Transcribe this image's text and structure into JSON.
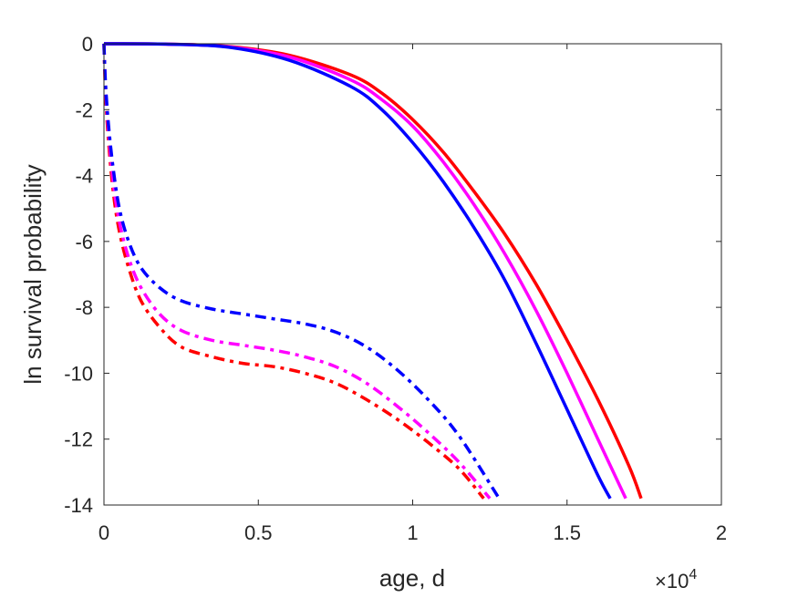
{
  "chart_data": {
    "type": "line",
    "title": "",
    "xlabel": "age, d",
    "ylabel": "ln survival probability",
    "x_exponent_label": "×10",
    "x_exponent_power": "4",
    "xlim": [
      0,
      20000
    ],
    "ylim": [
      -14,
      0
    ],
    "x_ticks": [
      0,
      5000,
      10000,
      15000,
      20000
    ],
    "x_tick_labels": [
      "0",
      "0.5",
      "1",
      "1.5",
      "2"
    ],
    "y_ticks": [
      0,
      -2,
      -4,
      -6,
      -8,
      -10,
      -12,
      -14
    ],
    "y_tick_labels": [
      "0",
      "-2",
      "-4",
      "-6",
      "-8",
      "-10",
      "-12",
      "-14"
    ],
    "grid": false,
    "series": [
      {
        "color": "#ff0000",
        "style": "solid",
        "points": [
          [
            0,
            0
          ],
          [
            2000,
            -0.01
          ],
          [
            4000,
            -0.08
          ],
          [
            6000,
            -0.35
          ],
          [
            8000,
            -0.95
          ],
          [
            9000,
            -1.5
          ],
          [
            10000,
            -2.3
          ],
          [
            11000,
            -3.3
          ],
          [
            12000,
            -4.5
          ],
          [
            13000,
            -5.8
          ],
          [
            14000,
            -7.3
          ],
          [
            15000,
            -9.0
          ],
          [
            16000,
            -10.8
          ],
          [
            17000,
            -12.8
          ],
          [
            17400,
            -13.8
          ]
        ]
      },
      {
        "color": "#ff00ff",
        "style": "solid",
        "points": [
          [
            0,
            0
          ],
          [
            2000,
            -0.01
          ],
          [
            4000,
            -0.09
          ],
          [
            6000,
            -0.4
          ],
          [
            8000,
            -1.1
          ],
          [
            9000,
            -1.7
          ],
          [
            10000,
            -2.5
          ],
          [
            11000,
            -3.6
          ],
          [
            12000,
            -4.9
          ],
          [
            13000,
            -6.4
          ],
          [
            14000,
            -8.1
          ],
          [
            15000,
            -10.0
          ],
          [
            16000,
            -12.0
          ],
          [
            16900,
            -13.8
          ]
        ]
      },
      {
        "color": "#0000ff",
        "style": "solid",
        "points": [
          [
            0,
            0
          ],
          [
            2000,
            -0.01
          ],
          [
            4000,
            -0.1
          ],
          [
            6000,
            -0.5
          ],
          [
            8000,
            -1.3
          ],
          [
            9000,
            -2.0
          ],
          [
            10000,
            -3.0
          ],
          [
            11000,
            -4.2
          ],
          [
            12000,
            -5.6
          ],
          [
            13000,
            -7.2
          ],
          [
            14000,
            -9.1
          ],
          [
            15000,
            -11.1
          ],
          [
            16000,
            -13.1
          ],
          [
            16400,
            -13.8
          ]
        ]
      },
      {
        "color": "#ff0000",
        "style": "dashdot",
        "points": [
          [
            0,
            0
          ],
          [
            50,
            -1.5
          ],
          [
            150,
            -3.0
          ],
          [
            300,
            -4.5
          ],
          [
            500,
            -5.7
          ],
          [
            800,
            -6.8
          ],
          [
            1200,
            -7.8
          ],
          [
            1800,
            -8.6
          ],
          [
            2500,
            -9.2
          ],
          [
            3500,
            -9.5
          ],
          [
            4500,
            -9.7
          ],
          [
            5500,
            -9.8
          ],
          [
            6500,
            -10.0
          ],
          [
            7500,
            -10.3
          ],
          [
            8500,
            -10.8
          ],
          [
            9500,
            -11.4
          ],
          [
            10500,
            -12.1
          ],
          [
            11500,
            -12.9
          ],
          [
            12300,
            -13.8
          ]
        ]
      },
      {
        "color": "#ff00ff",
        "style": "dashdot",
        "points": [
          [
            0,
            0
          ],
          [
            50,
            -1.3
          ],
          [
            150,
            -2.7
          ],
          [
            300,
            -4.2
          ],
          [
            500,
            -5.4
          ],
          [
            800,
            -6.5
          ],
          [
            1200,
            -7.4
          ],
          [
            1800,
            -8.2
          ],
          [
            2500,
            -8.7
          ],
          [
            3500,
            -9.0
          ],
          [
            4500,
            -9.15
          ],
          [
            5500,
            -9.3
          ],
          [
            6500,
            -9.5
          ],
          [
            7500,
            -9.8
          ],
          [
            8500,
            -10.3
          ],
          [
            9500,
            -11.0
          ],
          [
            10500,
            -11.8
          ],
          [
            11500,
            -12.7
          ],
          [
            12500,
            -13.8
          ]
        ]
      },
      {
        "color": "#0000ff",
        "style": "dashdot",
        "points": [
          [
            0,
            0
          ],
          [
            50,
            -1.2
          ],
          [
            150,
            -2.5
          ],
          [
            300,
            -3.8
          ],
          [
            500,
            -5.0
          ],
          [
            800,
            -6.0
          ],
          [
            1200,
            -6.8
          ],
          [
            1800,
            -7.4
          ],
          [
            2500,
            -7.8
          ],
          [
            3500,
            -8.05
          ],
          [
            4500,
            -8.2
          ],
          [
            5500,
            -8.35
          ],
          [
            6500,
            -8.5
          ],
          [
            7500,
            -8.75
          ],
          [
            8500,
            -9.2
          ],
          [
            9500,
            -9.9
          ],
          [
            10500,
            -10.8
          ],
          [
            11500,
            -11.9
          ],
          [
            12800,
            -13.8
          ]
        ]
      }
    ]
  }
}
